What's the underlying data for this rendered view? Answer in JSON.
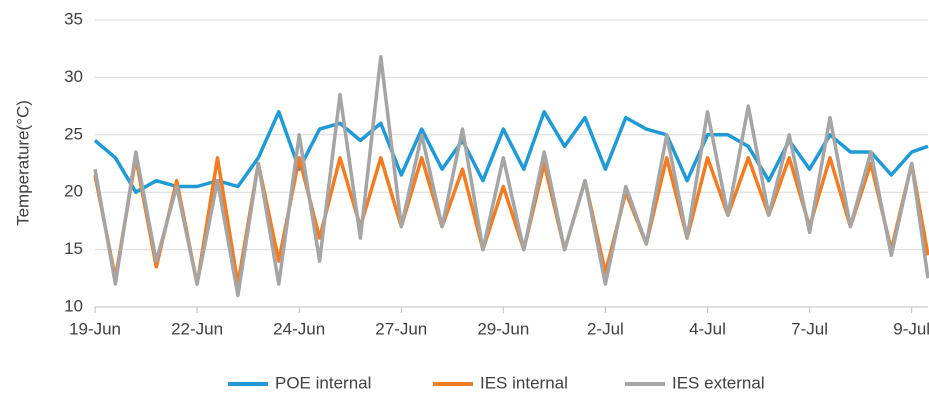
{
  "chart_data": {
    "type": "line",
    "y_label": "Temperature(°C)",
    "x": [
      0,
      0.5,
      1,
      1.5,
      2,
      2.5,
      3,
      3.5,
      4,
      4.5,
      5,
      5.5,
      6,
      6.5,
      7,
      7.5,
      8,
      8.5,
      9,
      9.5,
      10,
      10.5,
      11,
      11.5,
      12,
      12.5,
      13,
      13.5,
      14,
      14.5,
      15,
      15.5,
      16,
      16.5,
      17,
      17.5,
      18,
      18.5,
      19,
      19.5,
      20,
      20.4
    ],
    "series": [
      {
        "name": "POE internal",
        "color": "#1f9ad6",
        "values": [
          24.5,
          23,
          20,
          21,
          20.5,
          20.5,
          21,
          20.5,
          23,
          27,
          22,
          25.5,
          26,
          24.5,
          26,
          21.5,
          25.5,
          22,
          24.5,
          21,
          25.5,
          22,
          27,
          24,
          26.5,
          22,
          26.5,
          25.5,
          25,
          21,
          25,
          25,
          24,
          21,
          24.5,
          22,
          25,
          23.5,
          23.5,
          21.5,
          23.5,
          24
        ]
      },
      {
        "name": "IES internal",
        "color": "#f47b20",
        "values": [
          21.5,
          12.5,
          23,
          13.5,
          21,
          12,
          23,
          12,
          22.5,
          14,
          23,
          16,
          23,
          17,
          23,
          17,
          23,
          17,
          22,
          15,
          20.5,
          15,
          22.5,
          15,
          21,
          13,
          20,
          15.5,
          23,
          16,
          23,
          18,
          23,
          18,
          23,
          17,
          23,
          17,
          22.5,
          15,
          22.5,
          14.5
        ]
      },
      {
        "name": "IES external",
        "color": "#a5a5a5",
        "values": [
          22,
          12,
          23.5,
          14,
          20.5,
          12,
          21,
          11,
          22.5,
          12,
          25,
          14,
          28.5,
          16,
          31.8,
          17,
          25,
          17,
          25.5,
          15,
          23,
          15,
          23.5,
          15,
          21,
          12,
          20.5,
          15.5,
          25,
          16,
          27,
          18,
          27.5,
          18,
          25,
          16.5,
          26.5,
          17,
          23.5,
          14.5,
          22.5,
          12.5
        ]
      }
    ],
    "xlim": [
      0,
      20.4
    ],
    "xticks": [
      {
        "value": 0,
        "label": "19-Jun"
      },
      {
        "value": 2.5,
        "label": "22-Jun"
      },
      {
        "value": 5,
        "label": "24-Jun"
      },
      {
        "value": 7.5,
        "label": "27-Jun"
      },
      {
        "value": 10,
        "label": "29-Jun"
      },
      {
        "value": 12.5,
        "label": "2-Jul"
      },
      {
        "value": 15,
        "label": "4-Jul"
      },
      {
        "value": 17.5,
        "label": "7-Jul"
      },
      {
        "value": 20,
        "label": "9-Jul"
      }
    ],
    "ylim": [
      10,
      35
    ],
    "yticks": [
      10,
      15,
      20,
      25,
      30,
      35
    ],
    "grid": true,
    "legend": "bottom"
  }
}
